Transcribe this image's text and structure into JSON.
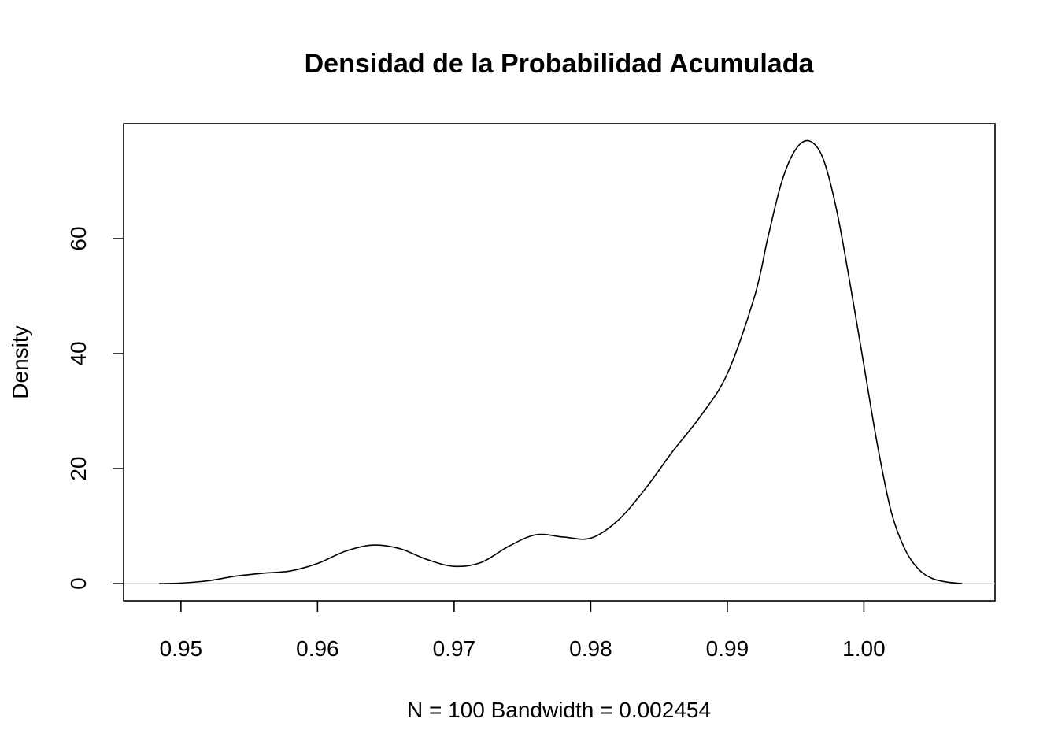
{
  "chart_data": {
    "type": "line",
    "title": "Densidad de la Probabilidad Acumulada",
    "xlabel": "N = 100   Bandwidth = 0.002454",
    "ylabel": "Density",
    "xlim": [
      0.9458,
      1.0096
    ],
    "ylim": [
      -3.0,
      80.0
    ],
    "x_ticks": [
      0.95,
      0.96,
      0.97,
      0.98,
      0.99,
      1.0
    ],
    "x_tick_labels": [
      "0.95",
      "0.96",
      "0.97",
      "0.98",
      "0.99",
      "1.00"
    ],
    "y_ticks": [
      0,
      20,
      40,
      60
    ],
    "y_tick_labels": [
      "0",
      "20",
      "40",
      "60"
    ],
    "zero_line": true,
    "grid": false,
    "series": [
      {
        "color": "#000000",
        "x": [
          0.9484,
          0.95,
          0.952,
          0.954,
          0.956,
          0.958,
          0.96,
          0.962,
          0.964,
          0.966,
          0.968,
          0.97,
          0.972,
          0.974,
          0.976,
          0.978,
          0.98,
          0.982,
          0.984,
          0.986,
          0.988,
          0.99,
          0.992,
          0.993,
          0.994,
          0.995,
          0.996,
          0.997,
          0.998,
          0.999,
          1.0,
          1.001,
          1.002,
          1.003,
          1.004,
          1.005,
          1.006,
          1.0072
        ],
        "y": [
          0.0,
          0.1,
          0.5,
          1.3,
          1.8,
          2.2,
          3.5,
          5.6,
          6.7,
          6.1,
          4.2,
          3.0,
          3.7,
          6.5,
          8.5,
          8.1,
          7.9,
          11.0,
          16.5,
          23.0,
          29.0,
          36.5,
          50.0,
          60.5,
          70.0,
          75.5,
          77.0,
          74.0,
          65.0,
          52.0,
          38.0,
          24.0,
          12.5,
          6.0,
          2.5,
          0.9,
          0.3,
          0.0
        ]
      }
    ]
  }
}
